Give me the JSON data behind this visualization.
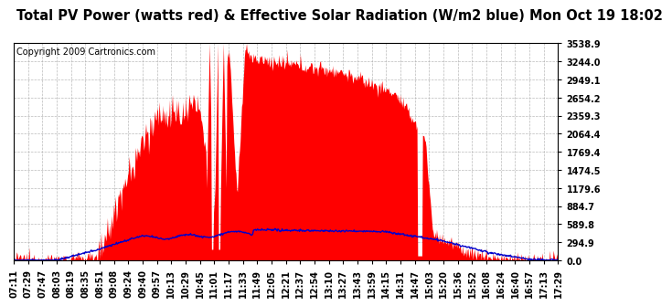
{
  "title": "Total PV Power (watts red) & Effective Solar Radiation (W/m2 blue) Mon Oct 19 18:02",
  "copyright": "Copyright 2009 Cartronics.com",
  "yticks": [
    0.0,
    294.9,
    589.8,
    884.7,
    1179.6,
    1474.5,
    1769.4,
    2064.4,
    2359.3,
    2654.2,
    2949.1,
    3244.0,
    3538.9
  ],
  "ymax": 3538.9,
  "xtick_labels": [
    "07:11",
    "07:29",
    "07:47",
    "08:03",
    "08:19",
    "08:35",
    "08:51",
    "09:08",
    "09:24",
    "09:40",
    "09:57",
    "10:13",
    "10:29",
    "10:45",
    "11:01",
    "11:17",
    "11:33",
    "11:49",
    "12:05",
    "12:21",
    "12:37",
    "12:54",
    "13:10",
    "13:27",
    "13:43",
    "13:59",
    "14:15",
    "14:31",
    "14:47",
    "15:03",
    "15:20",
    "15:36",
    "15:52",
    "16:08",
    "16:24",
    "16:40",
    "16:57",
    "17:13",
    "17:29"
  ],
  "bg_color": "#ffffff",
  "plot_bg_color": "#ffffff",
  "grid_color": "#aaaaaa",
  "red_color": "#ff0000",
  "blue_color": "#0000cc",
  "title_fontsize": 10.5,
  "copyright_fontsize": 7,
  "tick_fontsize": 7
}
